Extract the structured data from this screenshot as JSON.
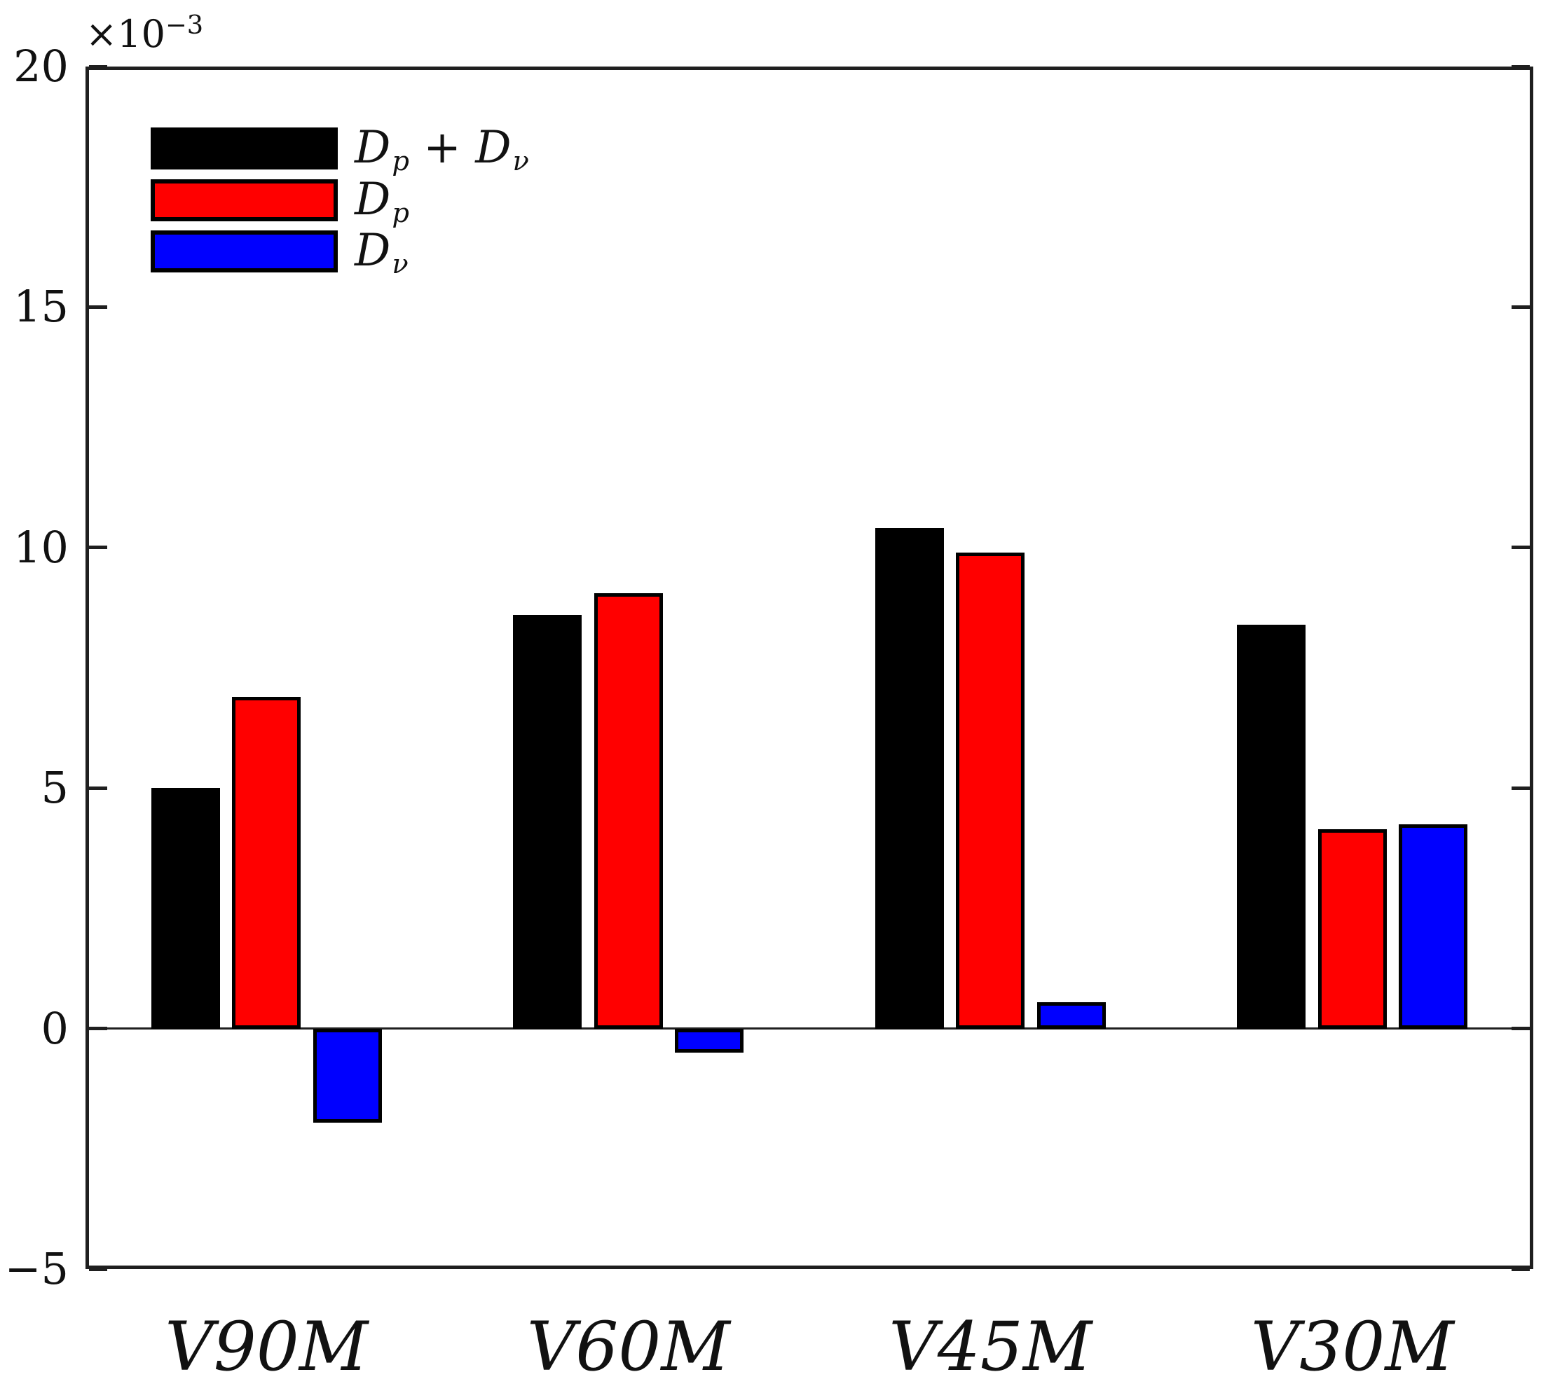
{
  "figure": {
    "exponent": {
      "prefix": "×10",
      "sup": "−3"
    }
  },
  "chart_data": {
    "type": "bar",
    "title": "",
    "xlabel": "",
    "ylabel": "",
    "y_scale_factor": "×10⁻³",
    "categories": [
      "V90M",
      "V60M",
      "V45M",
      "V30M"
    ],
    "series": [
      {
        "name": "Dp + Dν",
        "name_parts": [
          [
            "D",
            "p"
          ],
          [
            " + ",
            ""
          ],
          [
            "D",
            "ν"
          ]
        ],
        "color": "#000000",
        "values": [
          5.0,
          8.6,
          10.4,
          8.4
        ]
      },
      {
        "name": "Dp",
        "name_parts": [
          [
            "D",
            "p"
          ]
        ],
        "color": "#ff0000",
        "values": [
          6.9,
          9.05,
          9.9,
          4.15
        ]
      },
      {
        "name": "Dν",
        "name_parts": [
          [
            "D",
            "ν"
          ]
        ],
        "color": "#0000ff",
        "values": [
          -1.95,
          -0.5,
          0.55,
          4.25
        ]
      }
    ],
    "ylim": [
      -5,
      20
    ],
    "yticks": [
      20,
      15,
      10,
      5,
      0,
      -5
    ],
    "ytick_labels": [
      "20",
      "15",
      "10",
      "5",
      "0",
      "−5"
    ],
    "grid": false,
    "zero_line": true,
    "legend_position": "top-left",
    "bar_edge_color": "#000000",
    "axis_color": "#1f1f1f"
  }
}
